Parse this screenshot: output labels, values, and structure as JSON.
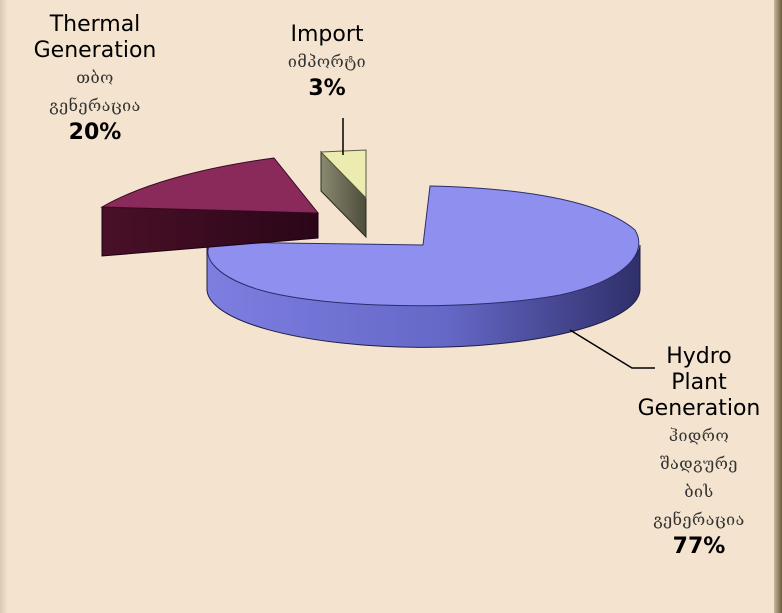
{
  "chart_data": {
    "type": "pie",
    "slices": [
      {
        "label_en": "Hydro Plant Generation",
        "label_en_lines": [
          "Hydro",
          "Plant",
          "Generation"
        ],
        "label_ka_lines": [
          "ჰიდრო",
          "შადგურე",
          "ბის",
          "გენერაცია"
        ],
        "value": 77,
        "value_label": "77%",
        "color": "#8f8ff0"
      },
      {
        "label_en": "Thermal Generation",
        "label_en_lines": [
          "Thermal",
          "Generation"
        ],
        "label_ka_lines": [
          "თბო",
          "გენერაცია"
        ],
        "value": 20,
        "value_label": "20%",
        "color": "#8a2a5a"
      },
      {
        "label_en": "Import",
        "label_en_lines": [
          "Import"
        ],
        "label_ka_lines": [
          "იმპორტი"
        ],
        "value": 3,
        "value_label": "3%",
        "color": "#ecebb0"
      }
    ]
  },
  "background_color": "#f4e4cf"
}
